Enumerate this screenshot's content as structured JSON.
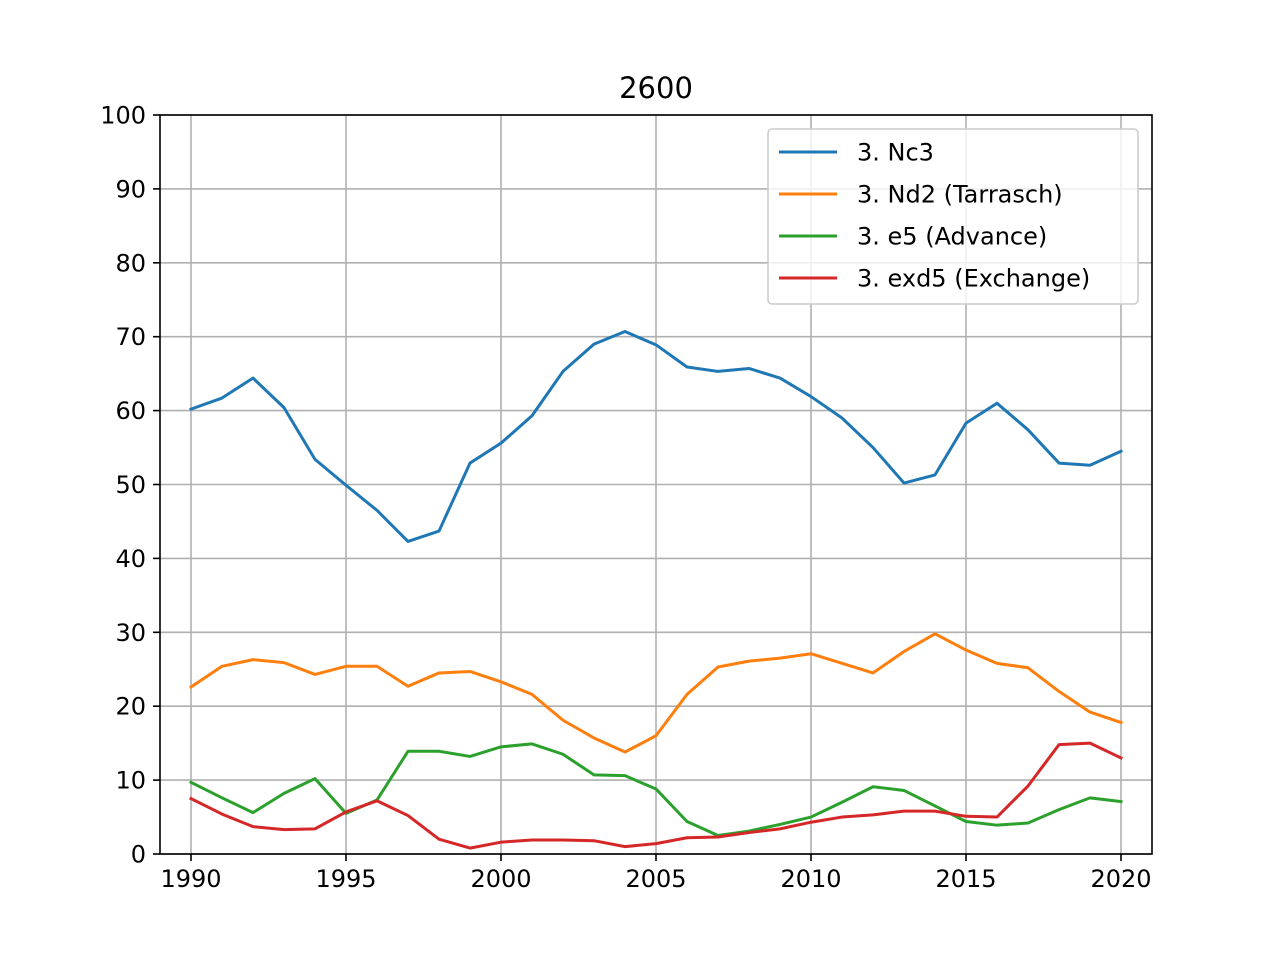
{
  "chart_data": {
    "type": "line",
    "title": "2600",
    "xlabel": "",
    "ylabel": "",
    "xlim": [
      1989,
      2021
    ],
    "ylim": [
      0,
      100
    ],
    "xticks": [
      1990,
      1995,
      2000,
      2005,
      2010,
      2015,
      2020
    ],
    "yticks": [
      0,
      10,
      20,
      30,
      40,
      50,
      60,
      70,
      80,
      90,
      100
    ],
    "grid": true,
    "legend_position": "top-right",
    "x": [
      1990,
      1991,
      1992,
      1993,
      1994,
      1995,
      1996,
      1997,
      1998,
      1999,
      2000,
      2001,
      2002,
      2003,
      2004,
      2005,
      2006,
      2007,
      2008,
      2009,
      2010,
      2011,
      2012,
      2013,
      2014,
      2015,
      2016,
      2017,
      2018,
      2019,
      2020
    ],
    "series": [
      {
        "name": "3. Nc3",
        "color": "#1f77b4",
        "values": [
          60.2,
          61.7,
          64.4,
          60.4,
          53.4,
          49.9,
          46.5,
          42.3,
          43.7,
          52.9,
          55.6,
          59.3,
          65.3,
          69.0,
          70.7,
          68.9,
          65.9,
          65.3,
          65.7,
          64.4,
          61.9,
          59.0,
          55.0,
          50.2,
          51.3,
          58.3,
          61.0,
          57.4,
          52.9,
          52.6,
          54.5
        ]
      },
      {
        "name": "3. Nd2 (Tarrasch)",
        "color": "#ff7f0e",
        "values": [
          22.6,
          25.4,
          26.3,
          25.9,
          24.3,
          25.4,
          25.4,
          22.7,
          24.5,
          24.7,
          23.3,
          21.6,
          18.1,
          15.7,
          13.8,
          16.0,
          21.6,
          25.3,
          26.1,
          26.5,
          27.1,
          25.8,
          24.5,
          27.4,
          29.8,
          27.6,
          25.8,
          25.2,
          22.0,
          19.2,
          17.8
        ]
      },
      {
        "name": "3. e5 (Advance)",
        "color": "#2ca02c",
        "values": [
          9.7,
          7.6,
          5.6,
          8.2,
          10.2,
          5.5,
          7.3,
          13.9,
          13.9,
          13.2,
          14.5,
          14.9,
          13.5,
          10.7,
          10.6,
          8.8,
          4.4,
          2.5,
          3.1,
          4.0,
          5.0,
          7.0,
          9.1,
          8.6,
          6.5,
          4.4,
          3.9,
          4.2,
          6.0,
          7.6,
          7.1
        ]
      },
      {
        "name": "3. exd5 (Exchange)",
        "color": "#d62728",
        "values": [
          7.5,
          5.4,
          3.7,
          3.3,
          3.4,
          5.7,
          7.2,
          5.2,
          2.0,
          0.8,
          1.6,
          1.9,
          1.9,
          1.8,
          1.0,
          1.4,
          2.2,
          2.3,
          2.9,
          3.4,
          4.3,
          5.0,
          5.3,
          5.8,
          5.8,
          5.1,
          5.0,
          9.2,
          14.8,
          15.0,
          13.0
        ]
      }
    ]
  }
}
